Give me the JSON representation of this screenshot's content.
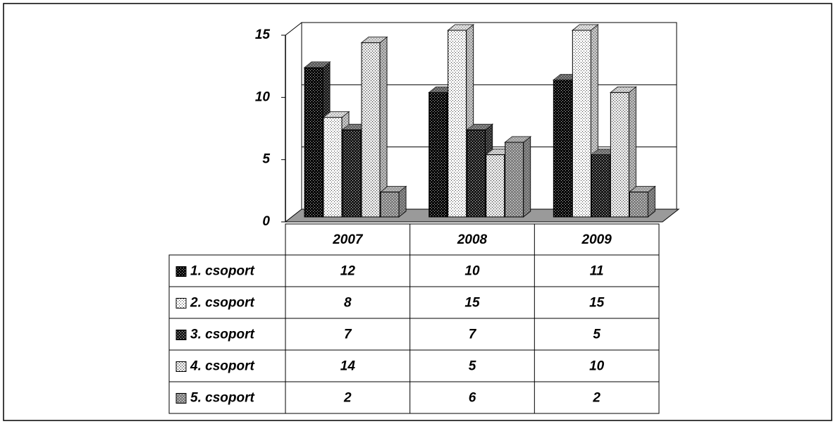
{
  "chart_data": {
    "type": "bar3d",
    "categories": [
      "2007",
      "2008",
      "2009"
    ],
    "series": [
      {
        "name": "1. csoport",
        "color": "#000000",
        "values": [
          12,
          10,
          11
        ]
      },
      {
        "name": "2. csoport",
        "color": "#ffffff",
        "values": [
          8,
          15,
          15
        ]
      },
      {
        "name": "3. csoport",
        "color": "#1a1a1a",
        "values": [
          7,
          7,
          5
        ]
      },
      {
        "name": "4. csoport",
        "color": "#e8e8e8",
        "values": [
          14,
          5,
          10
        ]
      },
      {
        "name": "5. csoport",
        "color": "#808080",
        "values": [
          2,
          6,
          2
        ]
      }
    ],
    "ylim": [
      0,
      15
    ],
    "yticks": [
      0,
      5,
      10,
      15
    ],
    "grid": true
  }
}
